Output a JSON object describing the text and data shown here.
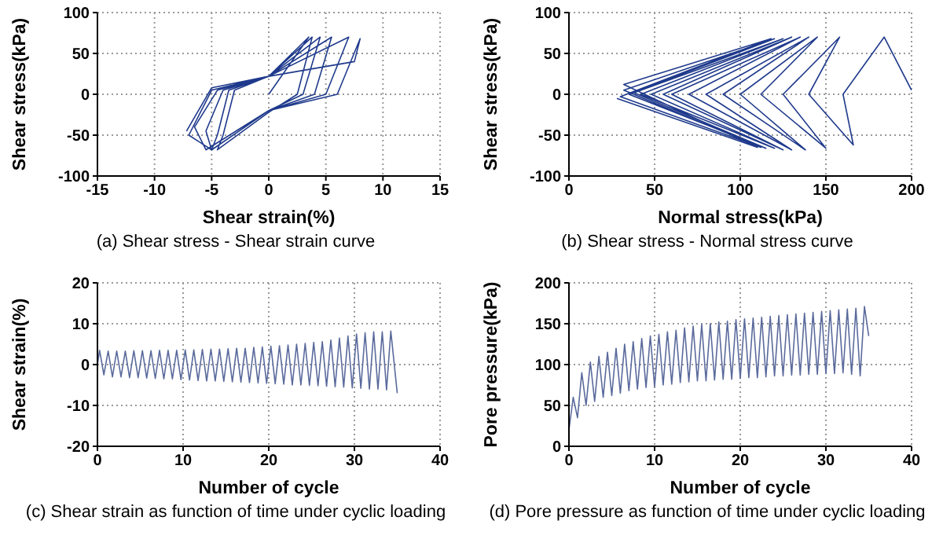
{
  "chart_data": [
    {
      "type": "line",
      "title": "(a) Shear stress - Shear strain curve",
      "xlabel": "Shear strain(%)",
      "ylabel": "Shear stress(kPa)",
      "xlim": [
        -15,
        15
      ],
      "xticks": [
        -15,
        -10,
        -5,
        0,
        5,
        10,
        15
      ],
      "ylim": [
        -100,
        100
      ],
      "yticks": [
        -100,
        -50,
        0,
        50,
        100
      ],
      "grid": true,
      "marker": "none",
      "color": "#1f3a8c",
      "x": [
        0,
        3.5,
        0,
        -3,
        -4,
        -4.5,
        0,
        2.5,
        3.8,
        0,
        -3.5,
        -4.5,
        -5,
        0,
        3,
        4.5,
        0,
        -4,
        -5.5,
        -5,
        0,
        4,
        5.5,
        0,
        -4.5,
        -6.5,
        -5.5,
        0,
        5,
        7,
        0,
        -5,
        -7,
        -5,
        0,
        6,
        8,
        7.5,
        0,
        -5,
        -7.2
      ],
      "values": [
        0,
        70,
        22,
        5,
        -50,
        -68,
        -22,
        0,
        70,
        22,
        5,
        -50,
        -68,
        -20,
        0,
        70,
        22,
        5,
        -45,
        -68,
        -20,
        0,
        70,
        22,
        5,
        -40,
        -68,
        -20,
        0,
        70,
        22,
        5,
        -50,
        -68,
        -20,
        0,
        68,
        40,
        22,
        8,
        -45
      ]
    },
    {
      "type": "line",
      "title": "(b) Shear stress - Normal stress curve",
      "xlabel": "Normal stress(kPa)",
      "ylabel": "Shear stress(kPa)",
      "xlim": [
        0,
        200
      ],
      "xticks": [
        0,
        50,
        100,
        150,
        200
      ],
      "ylim": [
        -100,
        100
      ],
      "yticks": [
        -100,
        -50,
        0,
        50,
        100
      ],
      "grid": true,
      "marker": "none",
      "color": "#1f3a8c",
      "x": [
        200,
        184,
        160,
        166,
        140,
        158,
        125,
        150,
        112,
        145,
        100,
        138,
        90,
        140,
        80,
        130,
        70,
        135,
        60,
        125,
        55,
        130,
        48,
        120,
        42,
        125,
        38,
        115,
        35,
        120,
        32,
        112,
        30,
        118,
        32,
        110,
        28
      ],
      "values": [
        5,
        70,
        0,
        -62,
        0,
        70,
        0,
        -66,
        0,
        70,
        0,
        -68,
        0,
        70,
        0,
        -68,
        0,
        70,
        0,
        -68,
        0,
        70,
        0,
        -66,
        0,
        68,
        2,
        -66,
        0,
        68,
        5,
        -65,
        -3,
        68,
        12,
        -65,
        -5
      ]
    },
    {
      "type": "line",
      "title": "(c) Shear strain as function of time under cyclic loading",
      "xlabel": "Number of cycle",
      "ylabel": "Shear strain(%)",
      "xlim": [
        0,
        40
      ],
      "xticks": [
        0,
        10,
        20,
        30,
        40
      ],
      "ylim": [
        -20,
        20
      ],
      "yticks": [
        -20,
        -10,
        0,
        10,
        20
      ],
      "grid": true,
      "marker": "none",
      "color": "#5a6a9c",
      "x": [
        0,
        0.25,
        0.75,
        1.25,
        1.75,
        2.25,
        2.75,
        3.25,
        3.75,
        4.25,
        4.75,
        5.25,
        5.75,
        6.25,
        6.75,
        7.25,
        7.75,
        8.25,
        8.75,
        9.25,
        9.75,
        10.25,
        10.75,
        11.25,
        11.75,
        12.25,
        12.75,
        13.25,
        13.75,
        14.25,
        14.75,
        15.25,
        15.75,
        16.25,
        16.75,
        17.25,
        17.75,
        18.25,
        18.75,
        19.25,
        19.75,
        20.25,
        20.75,
        21.25,
        21.75,
        22.25,
        22.75,
        23.25,
        23.75,
        24.25,
        24.75,
        25.25,
        25.75,
        26.25,
        26.75,
        27.25,
        27.75,
        28.25,
        28.75,
        29.25,
        29.75,
        30.25,
        30.75,
        31.25,
        31.75,
        32.25,
        32.75,
        33.25,
        33.75,
        34.25,
        35
      ],
      "values": [
        0,
        3.5,
        -2.5,
        3.3,
        -3,
        3.3,
        -3,
        3.3,
        -3.2,
        3.4,
        -3.2,
        3.4,
        -3.3,
        3.4,
        -3.4,
        3.5,
        -3.5,
        3.5,
        -3.5,
        3.5,
        -3.7,
        3.6,
        -3.8,
        3.6,
        -3.9,
        3.7,
        -4,
        3.8,
        -4,
        3.8,
        -4.1,
        3.9,
        -4.2,
        4,
        -4.3,
        4,
        -4.4,
        4.2,
        -4.5,
        4.3,
        -4.6,
        4.5,
        -4.7,
        4.6,
        -4.8,
        4.8,
        -5,
        5,
        -5,
        5.2,
        -5.1,
        5.4,
        -5.2,
        5.6,
        -5.3,
        6,
        -5.4,
        6.5,
        -5.5,
        7,
        -5.7,
        7.5,
        -5.8,
        7.8,
        -6,
        8,
        -6,
        8,
        -6.2,
        8.2,
        -7
      ]
    },
    {
      "type": "line",
      "title": "(d) Pore pressure as function of time under cyclic loading",
      "xlabel": "Number of cycle",
      "ylabel": "Pore pressure(kPa)",
      "xlim": [
        0,
        40
      ],
      "xticks": [
        0,
        10,
        20,
        30,
        40
      ],
      "ylim": [
        0,
        200
      ],
      "yticks": [
        0,
        50,
        100,
        150,
        200
      ],
      "grid": true,
      "marker": "none",
      "color": "#5a6a9c",
      "x": [
        0,
        0.5,
        1,
        1.5,
        2,
        2.5,
        3,
        3.5,
        4,
        4.5,
        5,
        5.5,
        6,
        6.5,
        7,
        7.5,
        8,
        8.5,
        9,
        9.5,
        10,
        10.5,
        11,
        11.5,
        12,
        12.5,
        13,
        13.5,
        14,
        14.5,
        15,
        15.5,
        16,
        16.5,
        17,
        17.5,
        18,
        18.5,
        19,
        19.5,
        20,
        20.5,
        21,
        21.5,
        22,
        22.5,
        23,
        23.5,
        24,
        24.5,
        25,
        25.5,
        26,
        26.5,
        27,
        27.5,
        28,
        28.5,
        29,
        29.5,
        30,
        30.5,
        31,
        31.5,
        32,
        32.5,
        33,
        33.5,
        34,
        34.5,
        35
      ],
      "values": [
        20,
        60,
        35,
        90,
        50,
        103,
        55,
        110,
        60,
        115,
        62,
        120,
        65,
        125,
        68,
        128,
        70,
        132,
        72,
        135,
        73,
        137,
        75,
        140,
        76,
        142,
        78,
        145,
        79,
        147,
        80,
        149,
        80,
        150,
        81,
        152,
        82,
        153,
        82,
        155,
        83,
        156,
        84,
        157,
        84,
        158,
        85,
        159,
        86,
        160,
        86,
        161,
        87,
        162,
        87,
        163,
        88,
        164,
        88,
        165,
        89,
        166,
        89,
        167,
        90,
        168,
        88,
        169,
        86,
        171,
        135
      ]
    }
  ]
}
